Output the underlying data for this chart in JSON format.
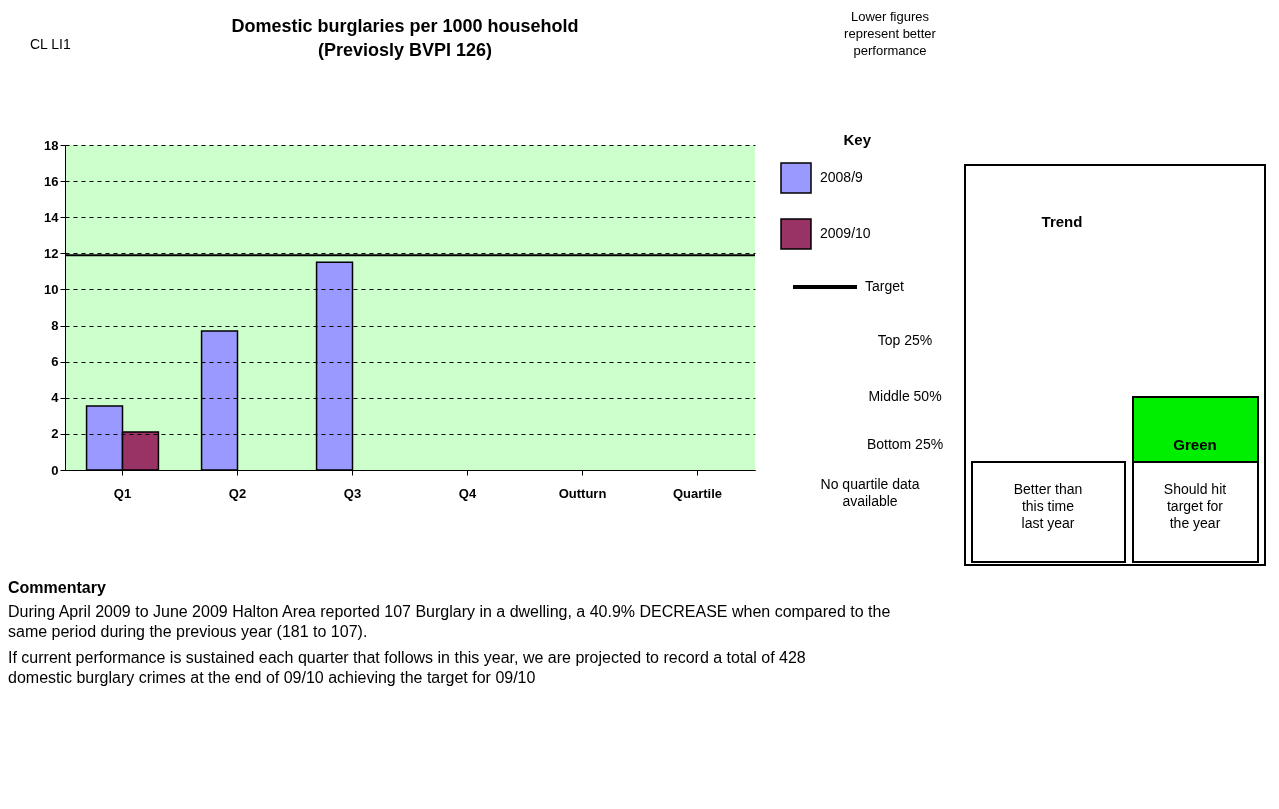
{
  "chart_data": {
    "type": "bar",
    "title": "Domestic burglaries per 1000 household",
    "subtitle": "(Previosly BVPI 126)",
    "categories": [
      "Q1",
      "Q2",
      "Q3",
      "Q4",
      "Outturn",
      "Quartile"
    ],
    "series": [
      {
        "name": "2008/9",
        "color": "#9999ff",
        "values": [
          3.55,
          7.7,
          11.5,
          null,
          null,
          null
        ]
      },
      {
        "name": "2009/10",
        "color": "#993366",
        "values": [
          2.1,
          null,
          null,
          null,
          null,
          null
        ]
      }
    ],
    "ylim": [
      0,
      18
    ],
    "yticks": [
      0,
      2,
      4,
      6,
      8,
      10,
      12,
      14,
      16,
      18
    ],
    "grid": "y",
    "legend": "right",
    "legend_title": "Key",
    "ref_lines": [
      {
        "axis": "y",
        "value": 11.9,
        "label": "Target",
        "color": "#000000"
      }
    ],
    "bands": [
      {
        "axis": "y",
        "from": 0,
        "to": 18,
        "color": "#ccffcc"
      }
    ],
    "annotations": [
      "CL LI1",
      "Lower figures represent better performance",
      "No quartile data available",
      "Trend",
      "Green",
      "Better than this time last year",
      "Should hit target for the year",
      "Top 25%",
      "Middle 50%",
      "Bottom 25%",
      "Commentary",
      "During April 2009 to June 2009 Halton Area reported 107 Burglary in a dwelling, a 40.9% DECREASE when compared to the same period during the previous year (181 to 107).",
      "If current performance is sustained each quarter that follows in this year, we are projected to record a total of 428 domestic burglary crimes at the end of 09/10 achieving the target for 09/10"
    ]
  }
}
